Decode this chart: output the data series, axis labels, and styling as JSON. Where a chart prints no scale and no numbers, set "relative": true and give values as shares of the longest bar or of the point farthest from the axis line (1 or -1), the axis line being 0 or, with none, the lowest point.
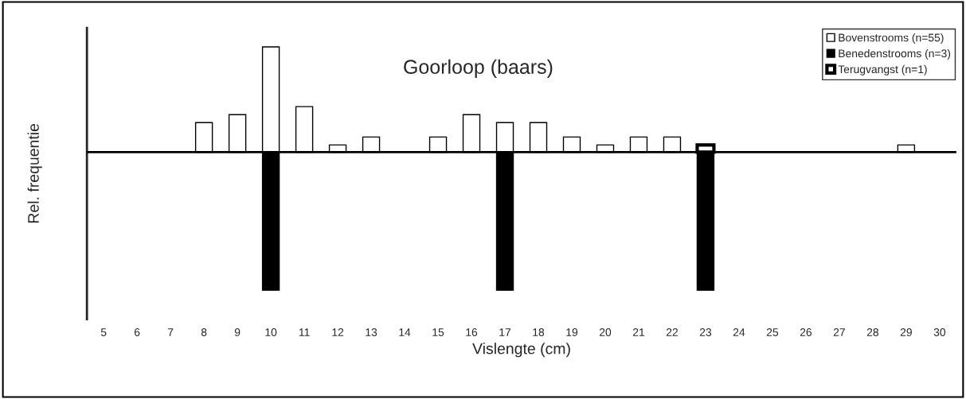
{
  "chart_data": {
    "type": "bar",
    "title": "Goorloop (baars)",
    "xlabel": "Vislengte (cm)",
    "ylabel": "Rel. frequentie",
    "categories": [
      "5",
      "6",
      "7",
      "8",
      "9",
      "10",
      "11",
      "12",
      "13",
      "14",
      "15",
      "16",
      "17",
      "18",
      "19",
      "20",
      "21",
      "22",
      "23",
      "24",
      "25",
      "26",
      "27",
      "28",
      "29",
      "30"
    ],
    "relative": true,
    "legend": "top right",
    "grid": false,
    "series": [
      {
        "name": "Bovenstrooms (n=55)",
        "color": "#ffffff",
        "values": [
          null,
          null,
          null,
          0.214,
          0.272,
          0.763,
          0.33,
          0.052,
          0.11,
          null,
          0.11,
          0.272,
          0.214,
          0.214,
          0.11,
          0.052,
          0.11,
          0.11,
          null,
          null,
          null,
          null,
          null,
          null,
          0.052,
          null
        ]
      },
      {
        "name": "Benedenstrooms (n=3)",
        "color": "#000000",
        "values": [
          null,
          null,
          null,
          null,
          null,
          -1,
          null,
          null,
          null,
          null,
          null,
          null,
          -1,
          null,
          null,
          null,
          null,
          null,
          -1,
          null,
          null,
          null,
          null,
          null,
          null,
          null
        ]
      },
      {
        "name": "Terugvangst (n=1)",
        "color": "#ffffff",
        "values": [
          null,
          null,
          null,
          null,
          null,
          null,
          null,
          null,
          null,
          null,
          null,
          null,
          null,
          null,
          null,
          null,
          null,
          null,
          0.052,
          null,
          null,
          null,
          null,
          null,
          null,
          null
        ]
      }
    ]
  }
}
